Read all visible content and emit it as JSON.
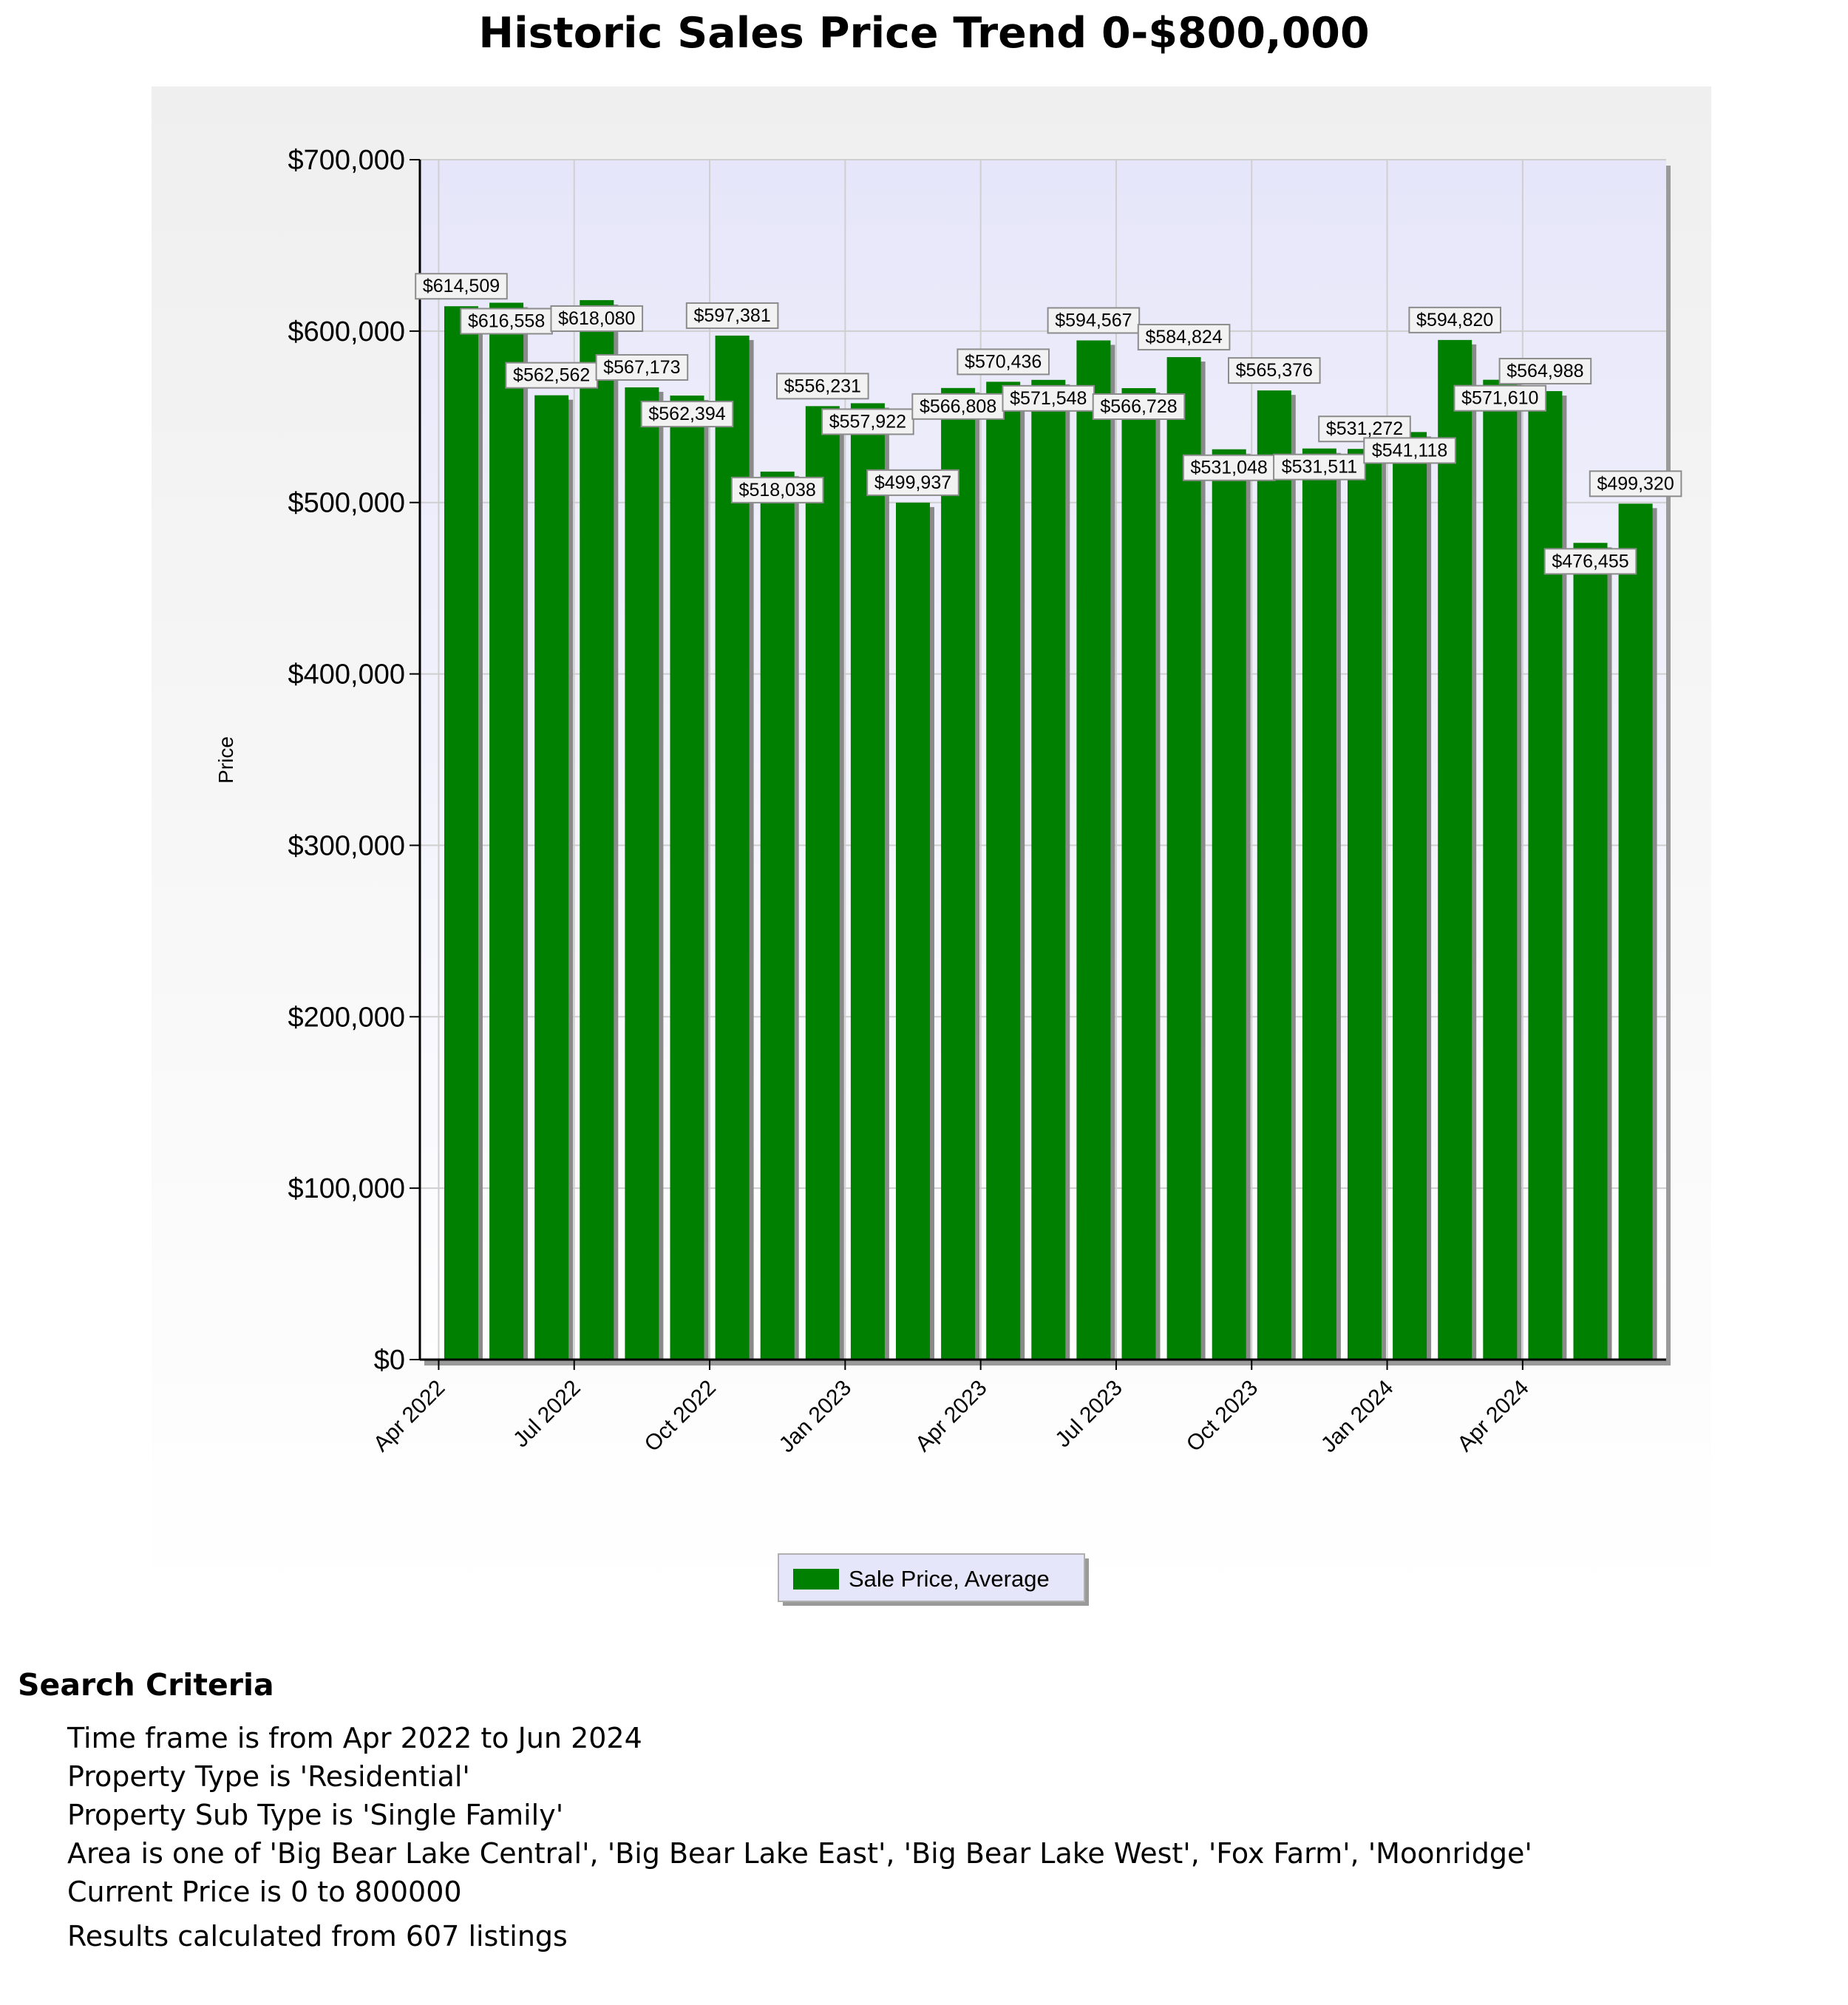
{
  "page": {
    "title": "Historic Sales Price Trend 0-$800,000"
  },
  "colors": {
    "bar": "#008000",
    "plot_bg_top": "#e6e6fa",
    "plot_bg_bottom": "#ffffff",
    "chart_bg": "#efefef"
  },
  "chart_data": {
    "type": "bar",
    "title": "Historic Sales Price Trend 0-$800,000",
    "xlabel": "",
    "ylabel": "Price",
    "ylim": [
      0,
      700000
    ],
    "grid": true,
    "legend_position": "bottom-center",
    "y_ticks": [
      {
        "value": 0,
        "label": "$0"
      },
      {
        "value": 100000,
        "label": "$100,000"
      },
      {
        "value": 200000,
        "label": "$200,000"
      },
      {
        "value": 300000,
        "label": "$300,000"
      },
      {
        "value": 400000,
        "label": "$400,000"
      },
      {
        "value": 500000,
        "label": "$500,000"
      },
      {
        "value": 600000,
        "label": "$600,000"
      },
      {
        "value": 700000,
        "label": "$700,000"
      }
    ],
    "x_ticks": [
      {
        "index": 0,
        "label": "Apr 2022"
      },
      {
        "index": 3,
        "label": "Jul 2022"
      },
      {
        "index": 6,
        "label": "Oct 2022"
      },
      {
        "index": 9,
        "label": "Jan 2023"
      },
      {
        "index": 12,
        "label": "Apr 2023"
      },
      {
        "index": 15,
        "label": "Jul 2023"
      },
      {
        "index": 18,
        "label": "Oct 2023"
      },
      {
        "index": 21,
        "label": "Jan 2024"
      },
      {
        "index": 24,
        "label": "Apr 2024"
      }
    ],
    "series": [
      {
        "name": "Sale Price, Average",
        "values": [
          614509,
          616558,
          562562,
          618080,
          567173,
          562394,
          597381,
          518038,
          556231,
          557922,
          499937,
          566808,
          570436,
          571548,
          594567,
          566728,
          584824,
          531048,
          565376,
          531511,
          531272,
          541118,
          594820,
          571610,
          564988,
          476455,
          499320
        ],
        "labels": [
          "$614,509",
          "$616,558",
          "$562,562",
          "$618,080",
          "$567,173",
          "$562,394",
          "$597,381",
          "$518,038",
          "$556,231",
          "$557,922",
          "$499,937",
          "$566,808",
          "$570,436",
          "$571,548",
          "$594,567",
          "$566,728",
          "$584,824",
          "$531,048",
          "$565,376",
          "$531,511",
          "$531,272",
          "$541,118",
          "$594,820",
          "$571,610",
          "$564,988",
          "$476,455",
          "$499,320"
        ]
      }
    ],
    "legend": {
      "label": "Sale Price, Average"
    }
  },
  "criteria": {
    "title": "Search Criteria",
    "lines": [
      "Time frame is from Apr 2022 to Jun 2024",
      "Property Type is 'Residential'",
      "Property Sub Type is 'Single Family'",
      "Area is one of 'Big Bear Lake Central', 'Big Bear Lake East', 'Big Bear Lake West', 'Fox Farm', 'Moonridge'",
      "Current Price is 0 to 800000"
    ],
    "results": "Results calculated from 607 listings"
  }
}
